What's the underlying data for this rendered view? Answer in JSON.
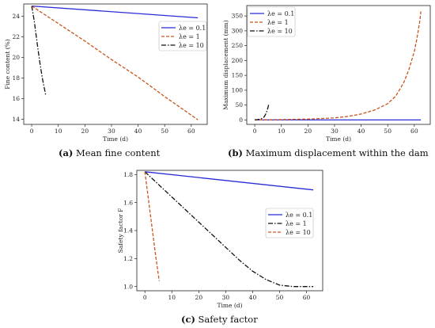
{
  "captions": [
    {
      "letter": "(a)",
      "text": "Mean fine content"
    },
    {
      "letter": "(b)",
      "text": "Maximum displacement within the dam"
    },
    {
      "letter": "(c)",
      "text": "Safety factor"
    }
  ],
  "chart_data": [
    {
      "type": "line",
      "xlabel": "Time (d)",
      "ylabel": "Fine content (%)",
      "xlim": [
        -3,
        66
      ],
      "ylim": [
        13.5,
        25.2
      ],
      "xticks": [
        0,
        10,
        20,
        30,
        40,
        50,
        60
      ],
      "yticks": [
        14,
        16,
        18,
        20,
        22,
        24
      ],
      "legend_position": "top-right",
      "series": [
        {
          "name": "λe = 0.1",
          "color": "#2b2bd6",
          "dash": "solid",
          "x": [
            0,
            62.5
          ],
          "y": [
            25.0,
            23.85
          ]
        },
        {
          "name": "λe = 1",
          "color": "#c8551e",
          "dash": "dashed",
          "x": [
            0,
            10,
            20,
            30,
            40,
            50,
            62.5
          ],
          "y": [
            25.0,
            23.3,
            21.6,
            19.8,
            18.1,
            16.2,
            13.95
          ]
        },
        {
          "name": "λe = 10",
          "color": "#111111",
          "dash": "dashdot",
          "x": [
            0,
            1,
            2,
            3,
            4,
            5.3
          ],
          "y": [
            25.0,
            23.5,
            21.5,
            19.6,
            18.0,
            16.3
          ]
        }
      ]
    },
    {
      "type": "line",
      "xlabel": "Time (d)",
      "ylabel": "Maximum displacement (mm)",
      "xlim": [
        -3,
        66
      ],
      "ylim": [
        -15,
        385
      ],
      "xticks": [
        0,
        10,
        20,
        30,
        40,
        50,
        60
      ],
      "yticks": [
        0,
        50,
        100,
        150,
        200,
        250,
        300,
        350
      ],
      "legend_position": "top-left",
      "series": [
        {
          "name": "λe = 0.1",
          "color": "#2b2bd6",
          "dash": "solid",
          "x": [
            0,
            62.5
          ],
          "y": [
            0,
            0
          ]
        },
        {
          "name": "λe = 1",
          "color": "#c8551e",
          "dash": "dashed",
          "x": [
            0,
            10,
            20,
            30,
            35,
            40,
            45,
            50,
            53,
            56,
            58,
            60,
            61,
            62,
            62.5
          ],
          "y": [
            0,
            1,
            3,
            7,
            12,
            20,
            33,
            55,
            80,
            125,
            170,
            230,
            275,
            330,
            365
          ]
        },
        {
          "name": "λe = 10",
          "color": "#111111",
          "dash": "dashdot",
          "x": [
            0,
            1,
            2,
            3,
            3.5,
            4,
            4.5,
            5,
            5.3
          ],
          "y": [
            0,
            1,
            3,
            6,
            10,
            17,
            28,
            42,
            55
          ]
        }
      ]
    },
    {
      "type": "line",
      "xlabel": "Time (d)",
      "ylabel": "Safety factor F",
      "xlim": [
        -3,
        66
      ],
      "ylim": [
        0.97,
        1.83
      ],
      "xticks": [
        0,
        10,
        20,
        30,
        40,
        50,
        60
      ],
      "yticks": [
        1.0,
        1.2,
        1.4,
        1.6,
        1.8
      ],
      "legend_position": "center-right",
      "series": [
        {
          "name": "λe = 0.1",
          "color": "#2b2bd6",
          "dash": "solid",
          "x": [
            0,
            62.5
          ],
          "y": [
            1.82,
            1.69
          ]
        },
        {
          "name": "λe = 1",
          "color": "#111111",
          "dash": "dashdot",
          "x": [
            0,
            5,
            10,
            15,
            20,
            25,
            30,
            35,
            40,
            45,
            50,
            55,
            62.5
          ],
          "y": [
            1.82,
            1.73,
            1.64,
            1.55,
            1.46,
            1.37,
            1.28,
            1.19,
            1.11,
            1.05,
            1.01,
            1.0,
            1.0
          ]
        },
        {
          "name": "λe = 10",
          "color": "#c8551e",
          "dash": "dashed",
          "x": [
            0,
            1,
            2,
            3,
            4,
            5.3
          ],
          "y": [
            1.82,
            1.67,
            1.52,
            1.37,
            1.22,
            1.04
          ]
        }
      ]
    }
  ]
}
